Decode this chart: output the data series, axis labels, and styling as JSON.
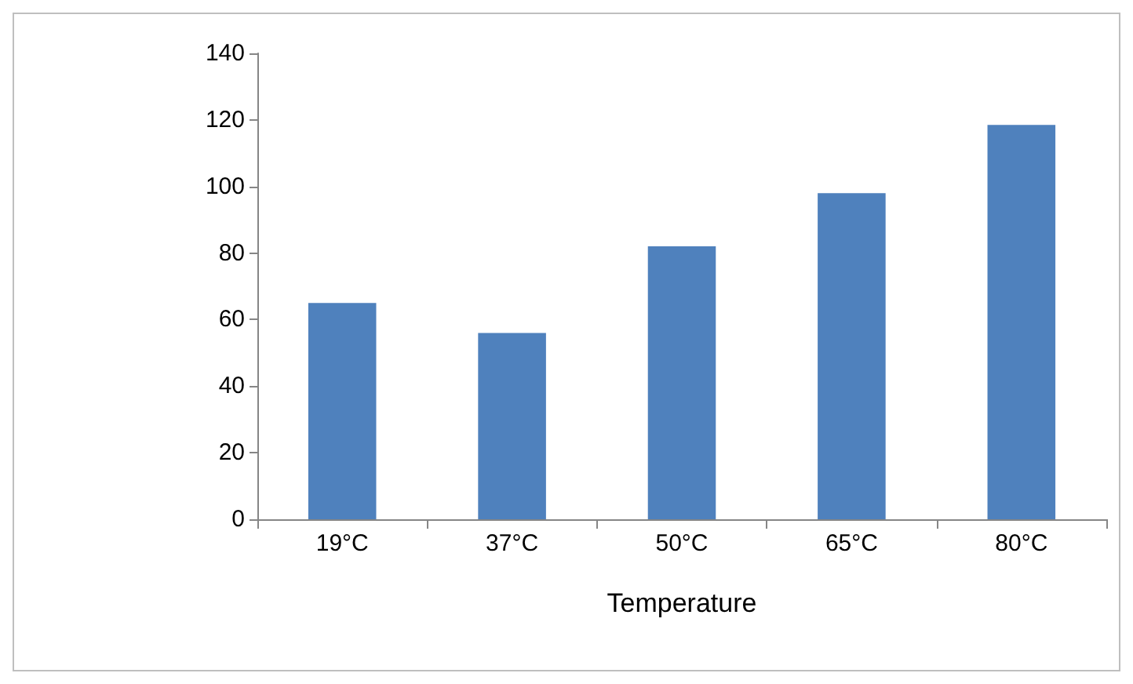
{
  "chart_data": {
    "type": "bar",
    "xlabel": "Temperature",
    "categories": [
      "19°C",
      "37°C",
      "50°C",
      "65°C",
      "80°C"
    ],
    "values": [
      65,
      56,
      82,
      98,
      118.5
    ],
    "color": "#4f81bd",
    "ylim": [
      0,
      140
    ],
    "yticks": [
      0,
      20,
      40,
      60,
      80,
      100,
      120,
      140
    ],
    "grid": false
  }
}
